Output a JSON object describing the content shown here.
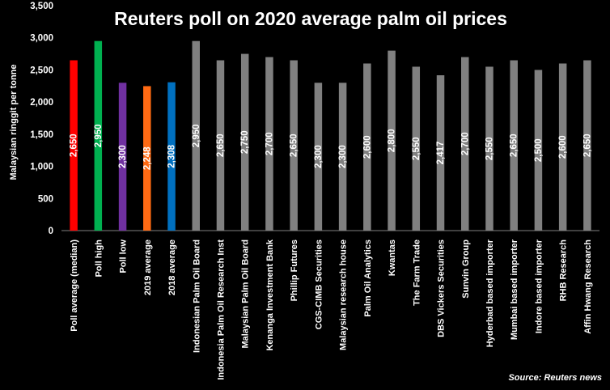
{
  "chart_data": {
    "type": "bar",
    "title": "Reuters poll on 2020 average palm oil prices",
    "ylabel": "Malaysian ringgit per tonne",
    "xlabel": "",
    "ylim": [
      0,
      3500
    ],
    "yticks": [
      "0",
      "500",
      "1,000",
      "1,500",
      "2,000",
      "2,500",
      "3,000",
      "3,500"
    ],
    "ytick_values": [
      0,
      500,
      1000,
      1500,
      2000,
      2500,
      3000,
      3500
    ],
    "grid": false,
    "source": "Source: Reuters news",
    "categories": [
      "Poll average (median)",
      "Poll high",
      "Poll low",
      "2019 average",
      "2018 average",
      "Indonesian Palm Oil Board",
      "Indonesia Palm Oil Research Inst",
      "Malaysian Palm Oil Board",
      "Kenanga Investment Bank",
      "Phillip Futures",
      "CGS-CIMB Securities",
      "Malaysian research house",
      "Palm Oil Analytics",
      "Kwantas",
      "The Farm Trade",
      "DBS Vickers Securities",
      "Sunvin Group",
      "Hyderbad based importer",
      "Mumbai based importer",
      "Indore based importer",
      "RHB Research",
      "Affin Hwang Research"
    ],
    "values": [
      2650,
      2950,
      2300,
      2248,
      2308,
      2950,
      2650,
      2750,
      2700,
      2650,
      2300,
      2300,
      2600,
      2800,
      2550,
      2417,
      2700,
      2550,
      2650,
      2500,
      2600,
      2650
    ],
    "value_labels": [
      "2,650",
      "2,950",
      "2,300",
      "2,248",
      "2,308",
      "2,950",
      "2,650",
      "2,750",
      "2,700",
      "2,650",
      "2,300",
      "2,300",
      "2,600",
      "2,800",
      "2,550",
      "2,417",
      "2,700",
      "2,550",
      "2,650",
      "2,500",
      "2,600",
      "2,650"
    ],
    "colors": [
      "#ff0000",
      "#00b050",
      "#7030a0",
      "#ff6a13",
      "#0070c0",
      "#808080",
      "#808080",
      "#808080",
      "#808080",
      "#808080",
      "#808080",
      "#808080",
      "#808080",
      "#808080",
      "#808080",
      "#808080",
      "#808080",
      "#808080",
      "#808080",
      "#808080",
      "#808080",
      "#808080"
    ]
  }
}
